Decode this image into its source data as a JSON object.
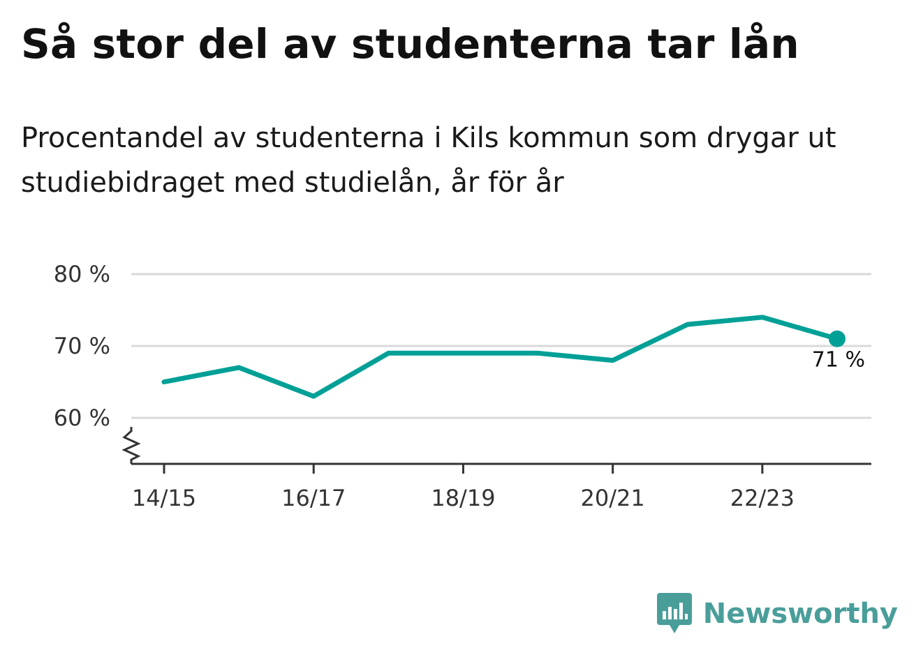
{
  "header": {
    "title": "Så stor del av studenterna tar lån",
    "subtitle": "Procentandel av studenterna i Kils kommun som drygar ut studiebidraget med studielån, år för år"
  },
  "logo": {
    "text": "Newsworthy",
    "icon": "newsworthy-logo-icon"
  },
  "colors": {
    "line": "#00a096",
    "grid": "#d9d9d9",
    "axis": "#333333",
    "logo": "#4a9e9a"
  },
  "chart_data": {
    "type": "line",
    "x": [
      "14/15",
      "15/16",
      "16/17",
      "17/18",
      "18/19",
      "19/20",
      "20/21",
      "21/22",
      "22/23",
      "23/24"
    ],
    "series": [
      {
        "values": [
          65,
          67,
          63,
          69,
          69,
          69,
          68,
          73,
          74,
          71
        ]
      }
    ],
    "x_tick_labels": [
      "14/15",
      "16/17",
      "18/19",
      "20/21",
      "22/23"
    ],
    "y_ticks": [
      60,
      70,
      80
    ],
    "y_tick_labels": [
      "60 %",
      "70 %",
      "80 %"
    ],
    "ylim": [
      60,
      80
    ],
    "y_axis_break": true,
    "grid": true,
    "last_value_label": "71 %"
  }
}
